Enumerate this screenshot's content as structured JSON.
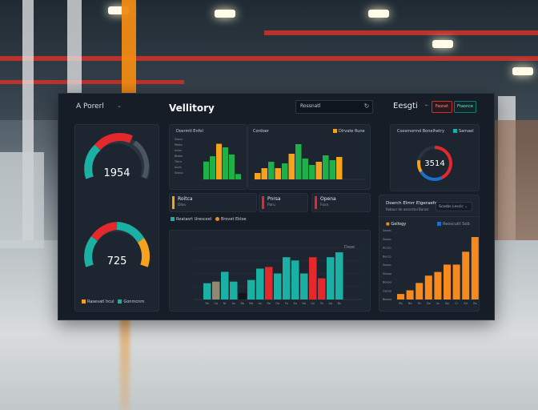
{
  "app": {
    "brand": "A Porerl",
    "title": "Vellitory",
    "search_placeholder": "Rossnatl",
    "right_title": "Eesgti"
  },
  "header_buttons": [
    {
      "label": "Fasnet",
      "color": "#c9322a"
    },
    {
      "label": "Ftaonce",
      "color": "#0e7a78"
    }
  ],
  "gauges": [
    {
      "value_label": "1954",
      "fraction": 0.66,
      "colors": [
        "#e5282c",
        "#1ab0a3",
        "#4a5560"
      ]
    },
    {
      "value_label": "725",
      "fraction": 0.72,
      "colors": [
        "#e5282c",
        "#1ab0a3",
        "#f6a21c"
      ]
    }
  ],
  "gauge_legend": [
    {
      "label": "Rasevatl hcul",
      "color": "#f6a21c"
    },
    {
      "label": "Gonmcnrn",
      "color": "#1ab0a3"
    }
  ],
  "top_chart": {
    "title": "Dosrmtl Enfol",
    "y_ticks": [
      "Soocc",
      "Pbbrs",
      "Acloc",
      "Bbbrs",
      "Tbiro",
      "Acclc",
      "Sbsvo"
    ]
  },
  "mid_chart": {
    "title": "Cordoer",
    "legend": "Dirvate Rune"
  },
  "kpi_tiles": [
    {
      "label": "Roitca",
      "sub": "Dlos",
      "color": "#f6a21c"
    },
    {
      "label": "Pnrsa",
      "sub": "Paru",
      "color": "#e5282c"
    },
    {
      "label": "Opena",
      "sub": "Fosn",
      "color": "#e5282c"
    }
  ],
  "bottom_chart": {
    "legend": [
      {
        "label": "Reatasrt Uresceel",
        "color": "#1ab0a3"
      },
      {
        "label": "Brovet Ekloe",
        "color": "#f68a1c"
      }
    ],
    "corner_label": "Daae",
    "x_labels": [
      "Ro",
      "Ca",
      "Nr",
      "As",
      "Ba",
      "Ma",
      "As",
      "Ra",
      "Oa",
      "Fo",
      "Ea",
      "Na",
      "Ce",
      "Ta",
      "Ap",
      "Bs"
    ]
  },
  "donut": {
    "title": "Coosmormd Bonelhetry",
    "legend": "Samael",
    "value_label": "3514",
    "fraction": 0.78
  },
  "right_panel": {
    "title": "Doerch Elmrr Elgeraefe",
    "subtitle": "Robour do asserstel Barasl",
    "button_label": "Scosbs Lescic",
    "sub_title": "Gellogy",
    "legend": "Reoscuitl Sob",
    "y_ticks": [
      "Baooo",
      "Gacoo",
      "Boooo",
      "Sbooo",
      "Socoo",
      "Bacco",
      "Accoo",
      "Sooco",
      "Socoo"
    ],
    "x_labels": [
      "Ro",
      "Na",
      "Fa",
      "Do",
      "Ac",
      "Bo",
      "Cr",
      "Ed",
      "Ro",
      "Ba"
    ]
  },
  "chart_data": [
    {
      "type": "bar",
      "title": "Dosrmtl Enfol",
      "series": [
        {
          "values": [
            20,
            26,
            40,
            36,
            28,
            6
          ],
          "color": "#1fb04a"
        }
      ],
      "highlight": {
        "index": 2,
        "color": "#f6a21c"
      },
      "ylim": [
        0,
        45
      ]
    },
    {
      "type": "bar",
      "title": "Cordoer",
      "values": [
        8,
        14,
        22,
        14,
        20,
        32,
        44,
        26,
        18,
        22,
        30,
        24,
        28
      ],
      "colors": [
        "#f6a21c",
        "#f6a21c",
        "#1fb04a",
        "#f6a21c",
        "#1fb04a",
        "#f6a21c",
        "#1fb04a",
        "#1fb04a",
        "#1fb04a",
        "#f6a21c",
        "#1fb04a",
        "#1fb04a",
        "#f6a21c"
      ],
      "ylim": [
        0,
        50
      ]
    },
    {
      "type": "bar",
      "values": [
        20,
        22,
        34,
        22,
        8,
        24,
        38,
        40,
        32,
        52,
        48,
        32,
        52,
        26,
        52,
        58
      ],
      "colors": [
        "#1ab0a3",
        "#8f8a6e",
        "#1ab0a3",
        "#1ab0a3",
        "#11151a",
        "#1ab0a3",
        "#1ab0a3",
        "#e5282c",
        "#1ab0a3",
        "#1ab0a3",
        "#1ab0a3",
        "#1ab0a3",
        "#e5282c",
        "#e5282c",
        "#1ab0a3",
        "#1ab0a3"
      ],
      "ylim": [
        0,
        65
      ]
    },
    {
      "type": "bar",
      "values": [
        6,
        10,
        18,
        26,
        30,
        38,
        38,
        52,
        68
      ],
      "color": "#f68a1c",
      "ylim": [
        0,
        75
      ]
    }
  ]
}
